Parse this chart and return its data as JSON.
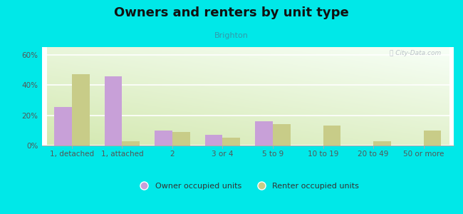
{
  "title": "Owners and renters by unit type",
  "subtitle": "Brighton",
  "categories": [
    "1, detached",
    "1, attached",
    "2",
    "3 or 4",
    "5 to 9",
    "10 to 19",
    "20 to 49",
    "50 or more"
  ],
  "owner_values": [
    25.5,
    45.5,
    10.0,
    7.0,
    16.0,
    0.0,
    0.0,
    0.0
  ],
  "renter_values": [
    47.0,
    3.0,
    9.0,
    5.0,
    14.0,
    13.0,
    3.0,
    10.0
  ],
  "owner_color": "#c8a0d8",
  "renter_color": "#c8cc88",
  "background_color": "#00e8e8",
  "ylim": [
    0,
    65
  ],
  "yticks": [
    0,
    20,
    40,
    60
  ],
  "ytick_labels": [
    "0%",
    "20%",
    "40%",
    "60%"
  ],
  "bar_width": 0.35,
  "title_fontsize": 13,
  "subtitle_fontsize": 8,
  "legend_fontsize": 8,
  "tick_fontsize": 7.5,
  "legend_owner": "Owner occupied units",
  "legend_renter": "Renter occupied units",
  "subtitle_color": "#3399aa",
  "title_color": "#111111"
}
